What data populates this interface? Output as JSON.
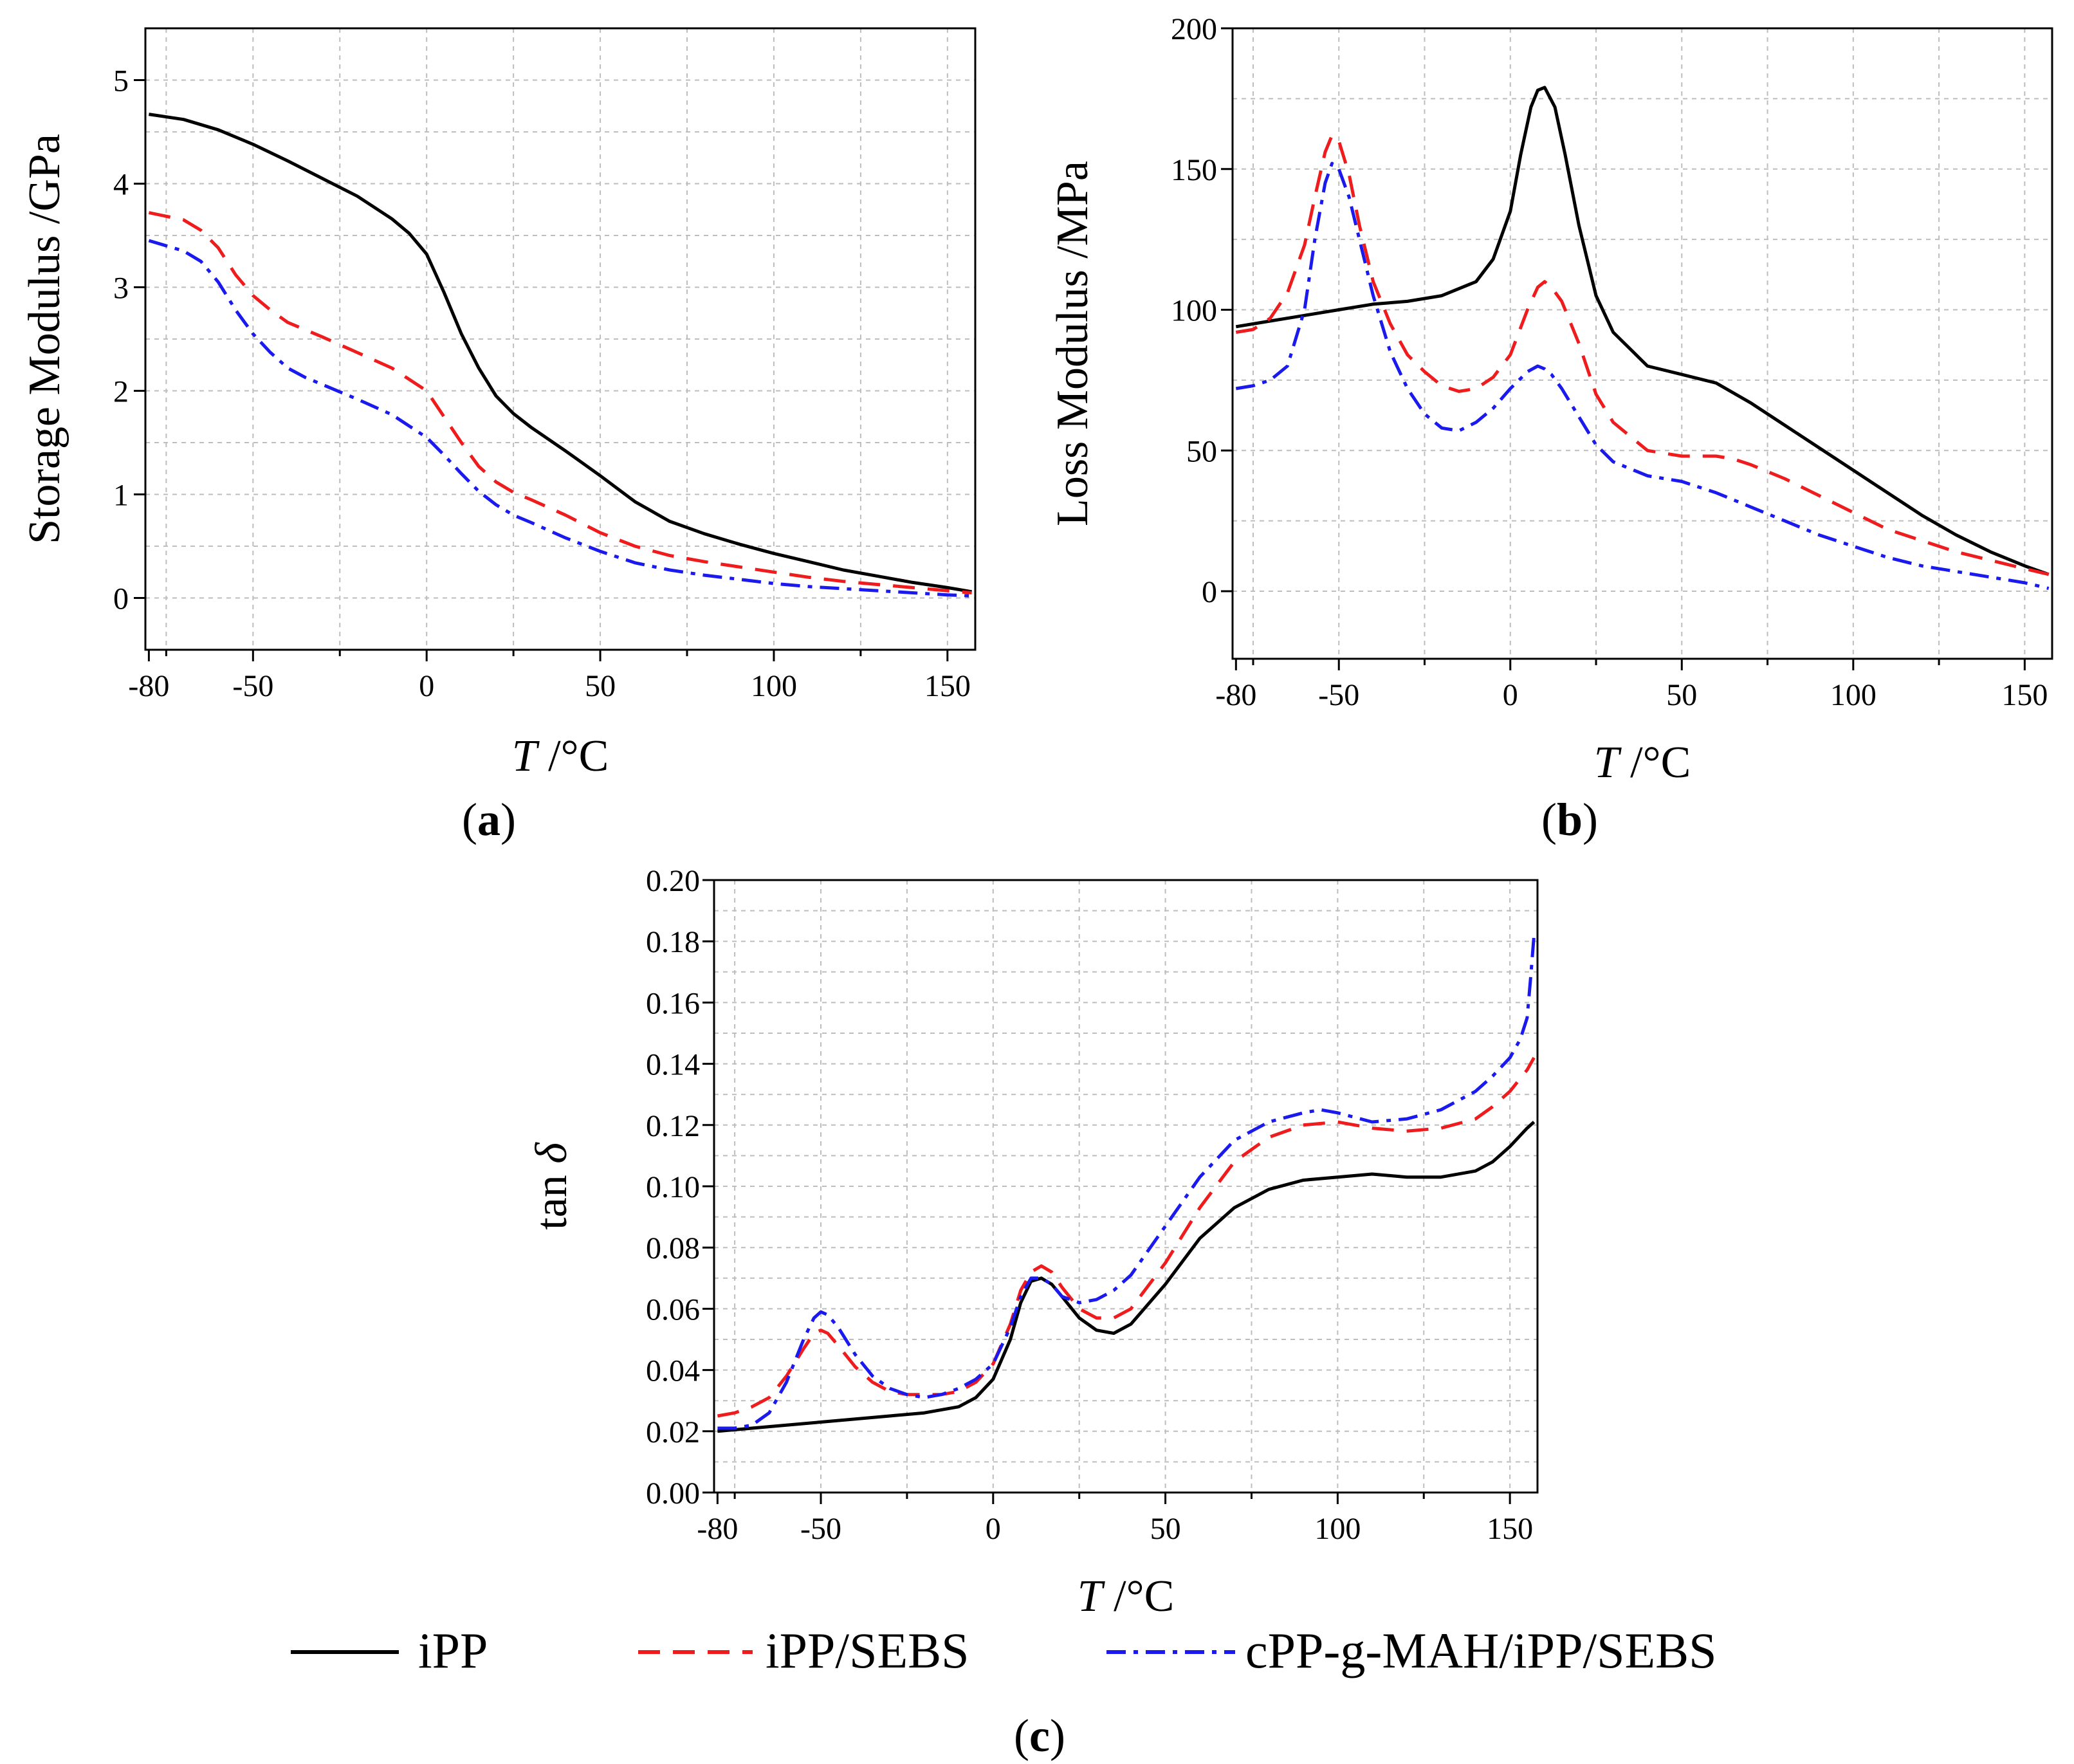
{
  "colors": {
    "iPP": "#000000",
    "iPP/SEBS": "#ee1c1c",
    "cPP-g-MAH/iPP/SEBS": "#1a1aee",
    "grid": "#bdbdbd"
  },
  "legend": {
    "items": [
      {
        "label": "iPP",
        "color": "#000000",
        "style": "solid"
      },
      {
        "label": "iPP/SEBS",
        "color": "#ee1c1c",
        "style": "dashed"
      },
      {
        "label": "cPP-g-MAH/iPP/SEBS",
        "color": "#1a1aee",
        "style": "dashdot"
      }
    ]
  },
  "chart_data": [
    {
      "type": "line",
      "panel_label": "(a)",
      "xlabel_var": "T",
      "xlabel_unit": " /°C",
      "ylabel": "Storage Modulus /GPa",
      "xlim": [
        -81,
        158
      ],
      "ylim": [
        -0.5,
        5.5
      ],
      "xticks": [
        -80,
        -50,
        0,
        50,
        100,
        150
      ],
      "yticks": [
        0,
        1,
        2,
        3,
        4,
        5
      ],
      "ytick_labels": [
        "0",
        "1",
        "2",
        "3",
        "4",
        "5"
      ],
      "series": [
        {
          "name": "iPP",
          "color": "#000000",
          "style": "solid",
          "x": [
            -80,
            -70,
            -60,
            -50,
            -40,
            -30,
            -20,
            -10,
            -5,
            0,
            5,
            10,
            15,
            20,
            25,
            30,
            40,
            50,
            60,
            70,
            80,
            90,
            100,
            110,
            120,
            130,
            140,
            150,
            157
          ],
          "y": [
            4.67,
            4.62,
            4.52,
            4.38,
            4.22,
            4.05,
            3.88,
            3.66,
            3.52,
            3.32,
            2.95,
            2.55,
            2.22,
            1.95,
            1.78,
            1.65,
            1.42,
            1.18,
            0.93,
            0.74,
            0.62,
            0.52,
            0.43,
            0.35,
            0.27,
            0.21,
            0.15,
            0.1,
            0.06
          ]
        },
        {
          "name": "iPP/SEBS",
          "color": "#ee1c1c",
          "style": "dashed",
          "x": [
            -80,
            -70,
            -65,
            -60,
            -55,
            -50,
            -45,
            -40,
            -30,
            -20,
            -10,
            0,
            5,
            10,
            15,
            20,
            25,
            30,
            40,
            50,
            60,
            70,
            80,
            90,
            100,
            110,
            120,
            130,
            140,
            150,
            157
          ],
          "y": [
            3.72,
            3.65,
            3.55,
            3.38,
            3.12,
            2.92,
            2.78,
            2.66,
            2.52,
            2.37,
            2.22,
            2.0,
            1.75,
            1.5,
            1.27,
            1.12,
            1.02,
            0.95,
            0.8,
            0.63,
            0.5,
            0.41,
            0.35,
            0.3,
            0.25,
            0.2,
            0.16,
            0.13,
            0.1,
            0.07,
            0.05
          ]
        },
        {
          "name": "cPP-g-MAH/iPP/SEBS",
          "color": "#1a1aee",
          "style": "dashdot",
          "x": [
            -80,
            -70,
            -65,
            -60,
            -55,
            -50,
            -45,
            -40,
            -35,
            -30,
            -20,
            -10,
            0,
            5,
            10,
            15,
            20,
            25,
            30,
            40,
            50,
            60,
            70,
            80,
            90,
            100,
            110,
            120,
            130,
            140,
            150,
            157
          ],
          "y": [
            3.45,
            3.35,
            3.25,
            3.05,
            2.78,
            2.55,
            2.37,
            2.22,
            2.13,
            2.06,
            1.92,
            1.77,
            1.55,
            1.38,
            1.2,
            1.03,
            0.9,
            0.8,
            0.73,
            0.58,
            0.45,
            0.34,
            0.27,
            0.22,
            0.18,
            0.14,
            0.11,
            0.09,
            0.07,
            0.05,
            0.03,
            0.02
          ]
        }
      ]
    },
    {
      "type": "line",
      "panel_label": "(b)",
      "xlabel_var": "T",
      "xlabel_unit": " /°C",
      "ylabel": "Loss Modulus /MPa",
      "xlim": [
        -81,
        158
      ],
      "ylim": [
        -24,
        200
      ],
      "xticks": [
        -80,
        -50,
        0,
        50,
        100,
        150
      ],
      "yticks": [
        0,
        50,
        100,
        150,
        200
      ],
      "ytick_labels": [
        "0",
        "50",
        "100",
        "150",
        "200"
      ],
      "series": [
        {
          "name": "iPP",
          "color": "#000000",
          "style": "solid",
          "x": [
            -80,
            -70,
            -60,
            -50,
            -40,
            -30,
            -20,
            -10,
            -5,
            0,
            3,
            6,
            8,
            10,
            13,
            16,
            20,
            25,
            30,
            40,
            50,
            60,
            70,
            80,
            90,
            100,
            110,
            120,
            130,
            140,
            150,
            157
          ],
          "y": [
            94,
            96,
            98,
            100,
            102,
            103,
            105,
            110,
            118,
            135,
            155,
            172,
            178,
            179,
            172,
            155,
            130,
            105,
            92,
            80,
            77,
            74,
            67,
            59,
            51,
            43,
            35,
            27,
            20,
            14,
            9,
            6
          ]
        },
        {
          "name": "iPP/SEBS",
          "color": "#ee1c1c",
          "style": "dashed",
          "x": [
            -80,
            -75,
            -70,
            -65,
            -60,
            -57,
            -54,
            -52,
            -50,
            -47,
            -44,
            -40,
            -35,
            -30,
            -25,
            -20,
            -15,
            -10,
            -5,
            0,
            5,
            8,
            10,
            12,
            15,
            20,
            25,
            30,
            40,
            50,
            60,
            65,
            70,
            80,
            90,
            100,
            110,
            120,
            130,
            140,
            150,
            157
          ],
          "y": [
            92,
            93,
            97,
            106,
            123,
            140,
            156,
            162,
            160,
            148,
            130,
            110,
            95,
            84,
            78,
            73,
            71,
            72,
            76,
            84,
            100,
            108,
            110,
            108,
            103,
            88,
            70,
            60,
            50,
            48,
            48,
            47,
            45,
            40,
            34,
            28,
            22,
            18,
            14,
            11,
            8,
            6
          ]
        },
        {
          "name": "cPP-g-MAH/iPP/SEBS",
          "color": "#1a1aee",
          "style": "dashdot",
          "x": [
            -80,
            -75,
            -70,
            -65,
            -60,
            -57,
            -54,
            -52,
            -50,
            -47,
            -44,
            -40,
            -35,
            -30,
            -25,
            -20,
            -15,
            -10,
            -5,
            0,
            5,
            8,
            10,
            12,
            15,
            20,
            25,
            30,
            40,
            50,
            60,
            70,
            80,
            90,
            100,
            110,
            120,
            130,
            140,
            150,
            157
          ],
          "y": [
            72,
            73,
            75,
            80,
            100,
            125,
            145,
            152,
            150,
            140,
            125,
            105,
            85,
            72,
            63,
            58,
            57,
            60,
            65,
            72,
            78,
            80,
            79,
            77,
            72,
            62,
            52,
            46,
            41,
            39,
            35,
            30,
            25,
            20,
            16,
            12,
            9,
            7,
            5,
            3,
            1
          ]
        }
      ]
    },
    {
      "type": "line",
      "panel_label": "(c)",
      "xlabel_var": "T",
      "xlabel_unit": " /°C",
      "ylabel_text": "tan",
      "ylabel_symbol": "δ",
      "xlim": [
        -81,
        158
      ],
      "ylim": [
        0,
        0.2
      ],
      "xticks": [
        -80,
        -50,
        0,
        50,
        100,
        150
      ],
      "yticks": [
        0,
        0.02,
        0.04,
        0.06,
        0.08,
        0.1,
        0.12,
        0.14,
        0.16,
        0.18,
        0.2
      ],
      "ytick_labels": [
        "0.00",
        "0.02",
        "0.04",
        "0.06",
        "0.08",
        "0.10",
        "0.12",
        "0.14",
        "0.16",
        "0.18",
        "0.20"
      ],
      "series": [
        {
          "name": "iPP",
          "color": "#000000",
          "style": "solid",
          "x": [
            -80,
            -70,
            -60,
            -50,
            -40,
            -30,
            -20,
            -10,
            -5,
            0,
            5,
            8,
            11,
            14,
            17,
            20,
            25,
            30,
            35,
            40,
            50,
            60,
            70,
            80,
            90,
            100,
            110,
            120,
            130,
            140,
            145,
            150,
            155,
            157
          ],
          "y": [
            0.02,
            0.021,
            0.022,
            0.023,
            0.024,
            0.025,
            0.026,
            0.028,
            0.031,
            0.037,
            0.05,
            0.062,
            0.069,
            0.07,
            0.068,
            0.064,
            0.057,
            0.053,
            0.052,
            0.055,
            0.068,
            0.083,
            0.093,
            0.099,
            0.102,
            0.103,
            0.104,
            0.103,
            0.103,
            0.105,
            0.108,
            0.113,
            0.119,
            0.121
          ]
        },
        {
          "name": "iPP/SEBS",
          "color": "#ee1c1c",
          "style": "dashed",
          "x": [
            -80,
            -75,
            -70,
            -65,
            -60,
            -55,
            -52,
            -50,
            -48,
            -45,
            -40,
            -35,
            -30,
            -25,
            -20,
            -15,
            -10,
            -5,
            0,
            5,
            8,
            11,
            14,
            17,
            20,
            25,
            30,
            35,
            40,
            50,
            60,
            70,
            80,
            90,
            100,
            110,
            120,
            130,
            140,
            145,
            150,
            155,
            157
          ],
          "y": [
            0.025,
            0.026,
            0.028,
            0.031,
            0.038,
            0.047,
            0.052,
            0.053,
            0.052,
            0.048,
            0.041,
            0.036,
            0.033,
            0.032,
            0.032,
            0.032,
            0.033,
            0.036,
            0.042,
            0.055,
            0.066,
            0.072,
            0.074,
            0.072,
            0.067,
            0.06,
            0.057,
            0.057,
            0.06,
            0.075,
            0.093,
            0.108,
            0.116,
            0.12,
            0.121,
            0.119,
            0.118,
            0.119,
            0.122,
            0.126,
            0.131,
            0.138,
            0.142
          ]
        },
        {
          "name": "cPP-g-MAH/iPP/SEBS",
          "color": "#1a1aee",
          "style": "dashdot",
          "x": [
            -80,
            -75,
            -70,
            -65,
            -60,
            -55,
            -52,
            -50,
            -48,
            -45,
            -40,
            -35,
            -30,
            -25,
            -20,
            -15,
            -10,
            -5,
            0,
            5,
            8,
            11,
            14,
            17,
            20,
            25,
            30,
            35,
            40,
            50,
            60,
            70,
            80,
            90,
            95,
            100,
            110,
            120,
            130,
            140,
            145,
            150,
            153,
            155,
            156,
            157
          ],
          "y": [
            0.021,
            0.021,
            0.022,
            0.026,
            0.036,
            0.05,
            0.057,
            0.059,
            0.058,
            0.054,
            0.045,
            0.038,
            0.034,
            0.032,
            0.031,
            0.032,
            0.034,
            0.037,
            0.042,
            0.054,
            0.064,
            0.07,
            0.07,
            0.068,
            0.064,
            0.062,
            0.063,
            0.066,
            0.071,
            0.087,
            0.103,
            0.115,
            0.121,
            0.124,
            0.125,
            0.124,
            0.121,
            0.122,
            0.125,
            0.131,
            0.136,
            0.142,
            0.148,
            0.155,
            0.168,
            0.182
          ]
        }
      ]
    }
  ]
}
